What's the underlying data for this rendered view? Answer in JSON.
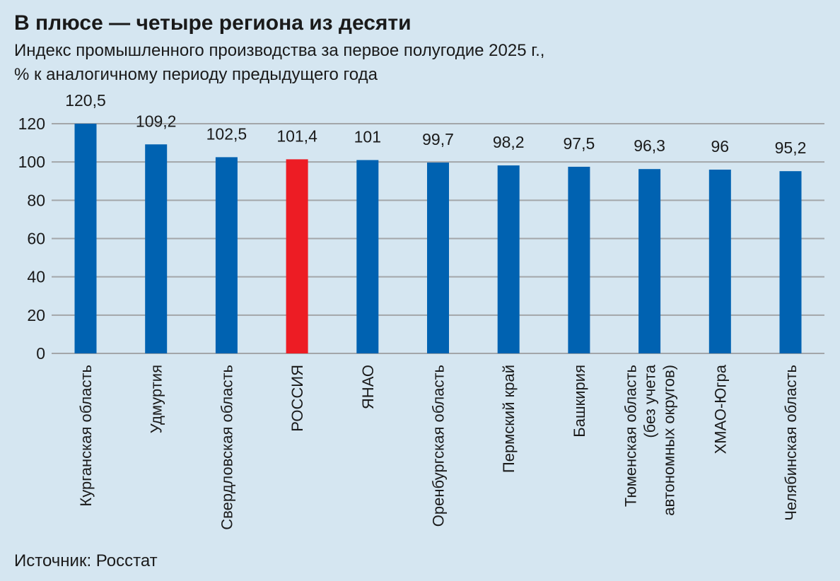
{
  "chart_data": {
    "type": "bar",
    "title": "В плюсе — четыре региона из десяти",
    "subtitle_lines": [
      "Индекс промышленного производства за первое полугодие 2025 г.,",
      "% к аналогичному периоду предыдущего года"
    ],
    "categories": [
      [
        "Курганская область"
      ],
      [
        "Удмуртия"
      ],
      [
        "Свердловская область"
      ],
      [
        "РОССИЯ"
      ],
      [
        "ЯНАО"
      ],
      [
        "Оренбургская область"
      ],
      [
        "Пермский край"
      ],
      [
        "Башкирия"
      ],
      [
        "Тюменская область",
        "(без учета",
        "автономных округов)"
      ],
      [
        "ХМАО-Югра"
      ],
      [
        "Челябинская область"
      ]
    ],
    "values": [
      120.5,
      109.2,
      102.5,
      101.4,
      101,
      99.7,
      98.2,
      97.5,
      96.3,
      96,
      95.2
    ],
    "value_labels": [
      "120,5",
      "109,2",
      "102,5",
      "101,4",
      "101",
      "99,7",
      "98,2",
      "97,5",
      "96,3",
      "96",
      "95,2"
    ],
    "highlight_index": 3,
    "yticks": [
      0,
      20,
      40,
      60,
      80,
      100,
      120
    ],
    "ylim": [
      0,
      120
    ],
    "xlabel": "",
    "ylabel": "",
    "grid": true,
    "colors": {
      "bar": "#0062b1",
      "highlight": "#ed1c24",
      "grid": "#a3a6a9",
      "background": "#d5e6f1"
    },
    "source": "Источник: Росстат"
  }
}
